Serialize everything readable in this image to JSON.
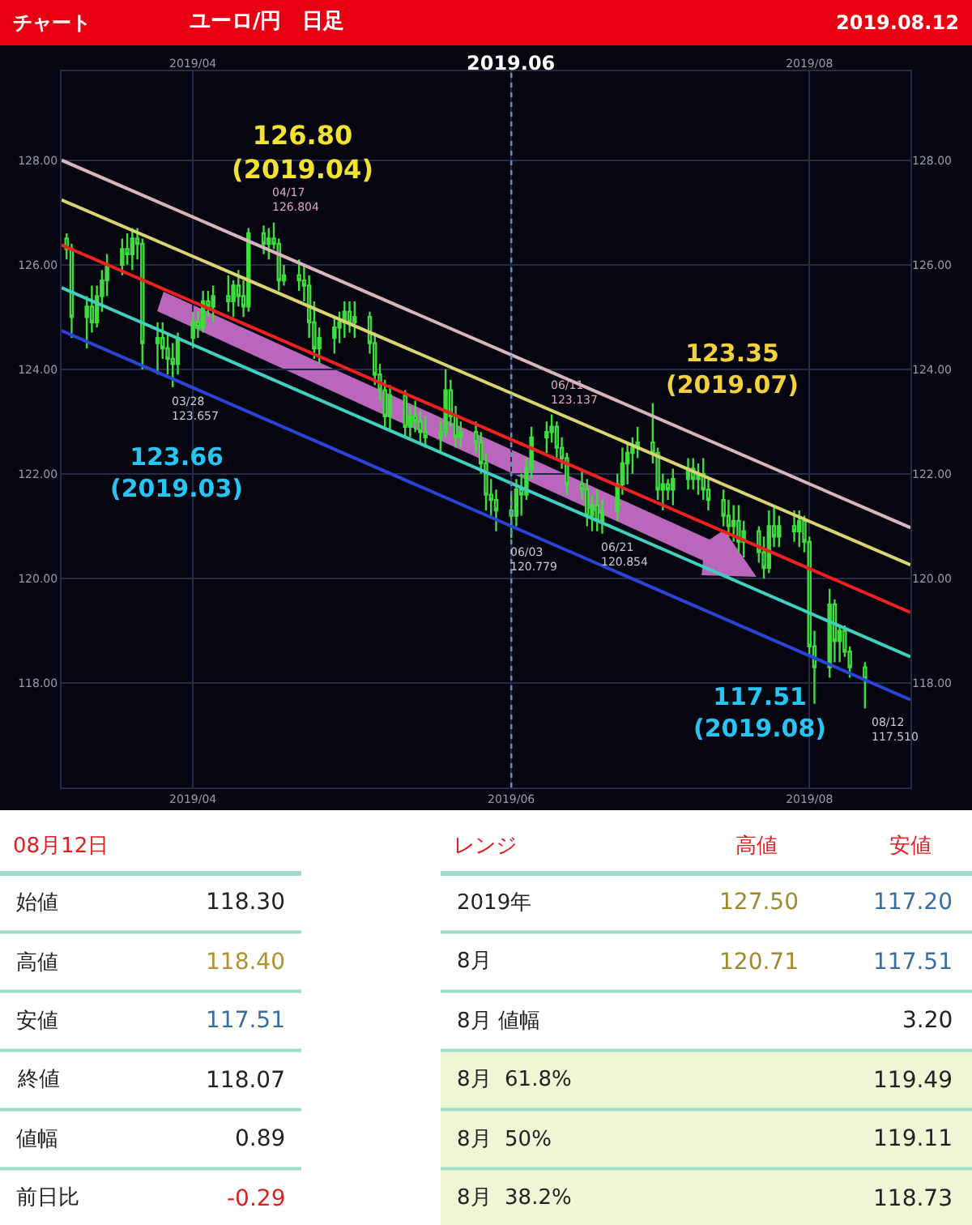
{
  "chart_data": [
    {
      "type": "candlestick",
      "title": "ユーロ/円　日足",
      "color": "#3fdc3f",
      "x": [
        "2019-03-07",
        "2019-03-08",
        "2019-03-11",
        "2019-03-12",
        "2019-03-13",
        "2019-03-14",
        "2019-03-15",
        "2019-03-18",
        "2019-03-19",
        "2019-03-20",
        "2019-03-21",
        "2019-03-22",
        "2019-03-25",
        "2019-03-26",
        "2019-03-27",
        "2019-03-28",
        "2019-03-29",
        "2019-04-01",
        "2019-04-02",
        "2019-04-03",
        "2019-04-04",
        "2019-04-05",
        "2019-04-08",
        "2019-04-09",
        "2019-04-10",
        "2019-04-11",
        "2019-04-12",
        "2019-04-15",
        "2019-04-16",
        "2019-04-17",
        "2019-04-18",
        "2019-04-19",
        "2019-04-22",
        "2019-04-23",
        "2019-04-24",
        "2019-04-25",
        "2019-04-26",
        "2019-04-29",
        "2019-04-30",
        "2019-05-01",
        "2019-05-02",
        "2019-05-03",
        "2019-05-06",
        "2019-05-07",
        "2019-05-08",
        "2019-05-09",
        "2019-05-10",
        "2019-05-13",
        "2019-05-14",
        "2019-05-15",
        "2019-05-16",
        "2019-05-17",
        "2019-05-20",
        "2019-05-21",
        "2019-05-22",
        "2019-05-23",
        "2019-05-24",
        "2019-05-27",
        "2019-05-28",
        "2019-05-29",
        "2019-05-30",
        "2019-05-31",
        "2019-06-03",
        "2019-06-04",
        "2019-06-05",
        "2019-06-06",
        "2019-06-07",
        "2019-06-10",
        "2019-06-11",
        "2019-06-12",
        "2019-06-13",
        "2019-06-14",
        "2019-06-17",
        "2019-06-18",
        "2019-06-19",
        "2019-06-20",
        "2019-06-21",
        "2019-06-24",
        "2019-06-25",
        "2019-06-26",
        "2019-06-27",
        "2019-06-28",
        "2019-07-01",
        "2019-07-02",
        "2019-07-03",
        "2019-07-04",
        "2019-07-05",
        "2019-07-08",
        "2019-07-09",
        "2019-07-10",
        "2019-07-11",
        "2019-07-12",
        "2019-07-15",
        "2019-07-16",
        "2019-07-17",
        "2019-07-18",
        "2019-07-19",
        "2019-07-22",
        "2019-07-23",
        "2019-07-24",
        "2019-07-25",
        "2019-07-26",
        "2019-07-29",
        "2019-07-30",
        "2019-07-31",
        "2019-08-01",
        "2019-08-02",
        "2019-08-05",
        "2019-08-06",
        "2019-08-07",
        "2019-08-08",
        "2019-08-09",
        "2019-08-12"
      ],
      "ohlc": [
        [
          126.5,
          126.6,
          126.1,
          126.3
        ],
        [
          126.3,
          126.4,
          124.6,
          125.0
        ],
        [
          125.0,
          125.4,
          124.4,
          125.2
        ],
        [
          125.2,
          125.6,
          124.7,
          124.9
        ],
        [
          124.9,
          125.6,
          124.8,
          125.4
        ],
        [
          125.4,
          125.9,
          125.1,
          125.7
        ],
        [
          125.7,
          126.2,
          125.4,
          126.0
        ],
        [
          126.0,
          126.5,
          125.8,
          126.3
        ],
        [
          126.3,
          126.6,
          126.0,
          126.2
        ],
        [
          126.2,
          126.7,
          125.9,
          126.5
        ],
        [
          126.5,
          126.7,
          126.1,
          126.4
        ],
        [
          126.4,
          126.5,
          124.0,
          124.5
        ],
        [
          124.5,
          124.9,
          123.9,
          124.6
        ],
        [
          124.6,
          124.9,
          124.2,
          124.4
        ],
        [
          124.4,
          124.7,
          123.9,
          124.2
        ],
        [
          124.2,
          124.5,
          123.657,
          124.1
        ],
        [
          124.1,
          124.7,
          123.9,
          124.6
        ],
        [
          124.6,
          125.1,
          124.4,
          124.9
        ],
        [
          124.9,
          125.1,
          124.6,
          124.8
        ],
        [
          124.8,
          125.5,
          124.7,
          125.3
        ],
        [
          125.3,
          125.5,
          125.0,
          125.2
        ],
        [
          125.2,
          125.6,
          124.9,
          125.4
        ],
        [
          125.4,
          125.8,
          125.1,
          125.3
        ],
        [
          125.3,
          125.7,
          125.0,
          125.6
        ],
        [
          125.6,
          125.9,
          125.2,
          125.4
        ],
        [
          125.4,
          125.7,
          125.0,
          125.2
        ],
        [
          125.2,
          126.7,
          125.1,
          126.6
        ],
        [
          126.6,
          126.75,
          126.2,
          126.4
        ],
        [
          126.4,
          126.7,
          126.1,
          126.5
        ],
        [
          126.5,
          126.804,
          126.3,
          126.4
        ],
        [
          126.4,
          126.5,
          125.5,
          125.7
        ],
        [
          125.7,
          126.0,
          125.6,
          125.8
        ],
        [
          125.8,
          126.1,
          125.5,
          125.7
        ],
        [
          125.7,
          126.0,
          125.3,
          125.6
        ],
        [
          125.6,
          125.8,
          124.6,
          124.9
        ],
        [
          124.9,
          125.3,
          124.2,
          124.4
        ],
        [
          124.4,
          124.8,
          124.1,
          124.6
        ],
        [
          124.6,
          125.0,
          124.3,
          124.8
        ],
        [
          124.8,
          125.1,
          124.5,
          124.9
        ],
        [
          124.9,
          125.3,
          124.6,
          125.1
        ],
        [
          125.1,
          125.3,
          124.7,
          124.9
        ],
        [
          124.9,
          125.3,
          124.6,
          125.0
        ],
        [
          125.0,
          125.1,
          124.3,
          124.5
        ],
        [
          124.5,
          124.7,
          123.7,
          123.9
        ],
        [
          123.9,
          124.1,
          123.4,
          123.6
        ],
        [
          123.6,
          123.8,
          122.9,
          123.1
        ],
        [
          123.1,
          123.7,
          122.8,
          123.5
        ],
        [
          123.5,
          123.6,
          122.7,
          122.9
        ],
        [
          122.9,
          123.3,
          122.7,
          123.1
        ],
        [
          123.1,
          123.4,
          122.8,
          123.0
        ],
        [
          123.0,
          123.2,
          122.6,
          122.8
        ],
        [
          122.8,
          123.1,
          122.5,
          122.7
        ],
        [
          122.7,
          123.0,
          122.4,
          122.8
        ],
        [
          122.8,
          124.0,
          122.7,
          123.6
        ],
        [
          123.6,
          123.8,
          122.9,
          123.1
        ],
        [
          123.1,
          123.3,
          122.5,
          122.7
        ],
        [
          122.7,
          123.0,
          122.5,
          122.8
        ],
        [
          122.8,
          123.0,
          122.4,
          122.6
        ],
        [
          122.6,
          122.8,
          122.0,
          122.2
        ],
        [
          122.2,
          122.4,
          121.3,
          121.6
        ],
        [
          121.6,
          121.9,
          121.2,
          121.5
        ],
        [
          121.5,
          121.7,
          120.9,
          121.3
        ],
        [
          121.3,
          121.6,
          120.779,
          121.2
        ],
        [
          121.2,
          121.9,
          121.0,
          121.7
        ],
        [
          121.7,
          122.0,
          121.2,
          121.6
        ],
        [
          121.6,
          122.3,
          121.5,
          122.1
        ],
        [
          122.1,
          122.9,
          121.9,
          122.7
        ],
        [
          122.7,
          123.0,
          122.4,
          122.8
        ],
        [
          122.8,
          123.137,
          122.6,
          122.9
        ],
        [
          122.9,
          123.0,
          122.3,
          122.5
        ],
        [
          122.5,
          122.7,
          122.1,
          122.3
        ],
        [
          122.3,
          122.4,
          121.6,
          121.8
        ],
        [
          121.8,
          122.1,
          121.5,
          121.7
        ],
        [
          121.7,
          121.9,
          121.0,
          121.2
        ],
        [
          121.2,
          121.6,
          120.9,
          121.4
        ],
        [
          121.4,
          121.7,
          120.9,
          121.1
        ],
        [
          121.1,
          121.5,
          120.854,
          121.3
        ],
        [
          121.3,
          122.0,
          121.1,
          121.8
        ],
        [
          121.8,
          122.5,
          121.6,
          122.2
        ],
        [
          122.2,
          122.6,
          121.8,
          122.4
        ],
        [
          122.4,
          122.7,
          122.0,
          122.5
        ],
        [
          122.5,
          122.9,
          122.3,
          122.6
        ],
        [
          122.6,
          123.35,
          122.2,
          122.4
        ],
        [
          122.4,
          122.5,
          121.5,
          121.7
        ],
        [
          121.7,
          122.0,
          121.3,
          121.8
        ],
        [
          121.8,
          121.9,
          121.5,
          121.7
        ],
        [
          121.7,
          122.1,
          121.4,
          121.9
        ],
        [
          121.9,
          122.3,
          121.7,
          122.1
        ],
        [
          122.1,
          122.3,
          121.7,
          121.9
        ],
        [
          121.9,
          122.2,
          121.6,
          122.0
        ],
        [
          122.0,
          122.3,
          121.5,
          121.7
        ],
        [
          121.7,
          121.9,
          121.3,
          121.5
        ],
        [
          121.5,
          121.7,
          121.0,
          121.2
        ],
        [
          121.2,
          121.5,
          120.8,
          121.0
        ],
        [
          121.0,
          121.4,
          120.7,
          121.1
        ],
        [
          121.1,
          121.4,
          120.5,
          120.7
        ],
        [
          120.7,
          121.1,
          120.4,
          120.9
        ],
        [
          120.9,
          121.0,
          120.3,
          120.5
        ],
        [
          120.5,
          120.8,
          120.0,
          120.2
        ],
        [
          120.2,
          121.3,
          120.1,
          121.0
        ],
        [
          121.0,
          121.4,
          120.6,
          120.8
        ],
        [
          120.8,
          121.2,
          120.6,
          121.0
        ],
        [
          121.0,
          121.3,
          120.7,
          120.9
        ],
        [
          120.9,
          121.3,
          120.6,
          121.1
        ],
        [
          121.1,
          121.2,
          120.5,
          120.7
        ],
        [
          120.7,
          120.8,
          118.5,
          118.7
        ],
        [
          118.7,
          119.0,
          117.6,
          118.3
        ],
        [
          118.3,
          119.8,
          118.1,
          119.5
        ],
        [
          119.5,
          119.6,
          118.4,
          118.8
        ],
        [
          118.8,
          119.1,
          118.4,
          119.0
        ],
        [
          119.0,
          119.1,
          118.5,
          118.6
        ],
        [
          118.6,
          118.7,
          118.1,
          118.3
        ],
        [
          118.3,
          118.4,
          117.51,
          118.07
        ]
      ],
      "series": [
        {
          "type": "line",
          "color": "#d8b4bc",
          "x": [
            "2019-03-06",
            "2019-08-21"
          ],
          "values": [
            128.0,
            120.97
          ]
        },
        {
          "type": "line",
          "color": "#d8d470",
          "x": [
            "2019-03-06",
            "2019-08-21"
          ],
          "values": [
            127.24,
            120.26
          ]
        },
        {
          "type": "line",
          "color": "#ee2020",
          "x": [
            "2019-03-06",
            "2019-08-21"
          ],
          "values": [
            126.38,
            119.35
          ]
        },
        {
          "type": "line",
          "color": "#40d0c0",
          "x": [
            "2019-03-06",
            "2019-08-21"
          ],
          "values": [
            125.56,
            118.5
          ]
        },
        {
          "type": "line",
          "color": "#2a44d8",
          "x": [
            "2019-03-06",
            "2019-08-21"
          ],
          "values": [
            124.74,
            117.68
          ]
        }
      ],
      "xlim": [
        "2019-03-06",
        "2019-08-21"
      ],
      "xticks": [
        {
          "value": "2019-04-01",
          "label": "2019/04"
        },
        {
          "value": "2019-06-03",
          "label": "2019/06"
        },
        {
          "value": "2019-08-01",
          "label": "2019/08"
        }
      ],
      "x2lim": [
        "2019-03-06",
        "2019-08-21"
      ],
      "x2ticks": [
        {
          "value": "2019-04-01",
          "label": "2019/04"
        },
        {
          "value": "2019-06-03",
          "label": null
        },
        {
          "value": "2019-08-01",
          "label": "2019/08"
        }
      ],
      "ylim": [
        116.0,
        129.7
      ],
      "yticks": [
        {
          "value": 118,
          "label": "118.00"
        },
        {
          "value": 120,
          "label": "120.00"
        },
        {
          "value": 122,
          "label": "122.00"
        },
        {
          "value": 124,
          "label": "124.00"
        },
        {
          "value": 126,
          "label": "126.00"
        },
        {
          "value": 128,
          "label": "128.00"
        }
      ],
      "y2lim": [
        116.0,
        129.7
      ],
      "y2ticks": [
        {
          "value": 118,
          "label": "118.00"
        },
        {
          "value": 120,
          "label": "120.00"
        },
        {
          "value": 122,
          "label": "122.00"
        },
        {
          "value": 124,
          "label": "124.00"
        },
        {
          "value": 126,
          "label": "126.00"
        },
        {
          "value": 128,
          "label": "128.00"
        }
      ],
      "grid": true,
      "ref_lines": [
        {
          "axis": "x",
          "value": "2019-06-03",
          "label": "2019.06",
          "color": "#6a8ab8",
          "line_style": "dotted"
        }
      ],
      "annotations": [
        {
          "text": "126.80\n(2019.04)",
          "x": "2019-04-17",
          "y": 126.8
        },
        {
          "text": "04/17\n126.804",
          "x": "2019-04-17",
          "y": 126.804
        },
        {
          "text": "123.66\n(2019.03)",
          "x": "2019-03-28",
          "y": 123.66
        },
        {
          "text": "03/28\n123.657",
          "x": "2019-03-28",
          "y": 123.657
        },
        {
          "text": "06/03\n120.779",
          "x": "2019-06-03",
          "y": 120.779
        },
        {
          "text": "06/11\n123.137",
          "x": "2019-06-11",
          "y": 123.137
        },
        {
          "text": "06/21\n120.854",
          "x": "2019-06-21",
          "y": 120.854
        },
        {
          "text": "123.35\n(2019.07)",
          "x": "2019-07-01",
          "y": 123.35
        },
        {
          "text": "117.51\n(2019.08)",
          "x": "2019-08-12",
          "y": 117.51
        },
        {
          "text": "08/12\n117.510",
          "x": "2019-08-12",
          "y": 117.51
        },
        "チャート",
        "2019.08.12"
      ]
    },
    {
      "type": "other",
      "title": "08月12日",
      "categories": [
        "始値",
        "高値",
        "安値",
        "終値",
        "値幅",
        "前日比"
      ],
      "value_labels": [
        "118.30",
        "118.40",
        "117.51",
        "118.07",
        "0.89",
        "-0.29"
      ],
      "colors": [
        "#222222",
        "#b09030",
        "#3b6e9e",
        "#222222",
        "#222222",
        "#e02020"
      ]
    },
    {
      "type": "other",
      "title": "レンジ",
      "categories": [
        "高値",
        "安値"
      ],
      "y_categories": [
        "2019年",
        "8月",
        "8月 値幅",
        "8月  61.8%",
        "8月  50%",
        "8月  38.2%"
      ],
      "cell_labels": [
        [
          "127.50",
          "117.20"
        ],
        [
          "120.71",
          "117.51"
        ],
        [
          null,
          "3.20"
        ],
        [
          null,
          "119.49"
        ],
        [
          null,
          "119.11"
        ],
        [
          null,
          "118.73"
        ]
      ],
      "colors": [
        "#a08a30",
        "#3b6e9e"
      ]
    }
  ]
}
